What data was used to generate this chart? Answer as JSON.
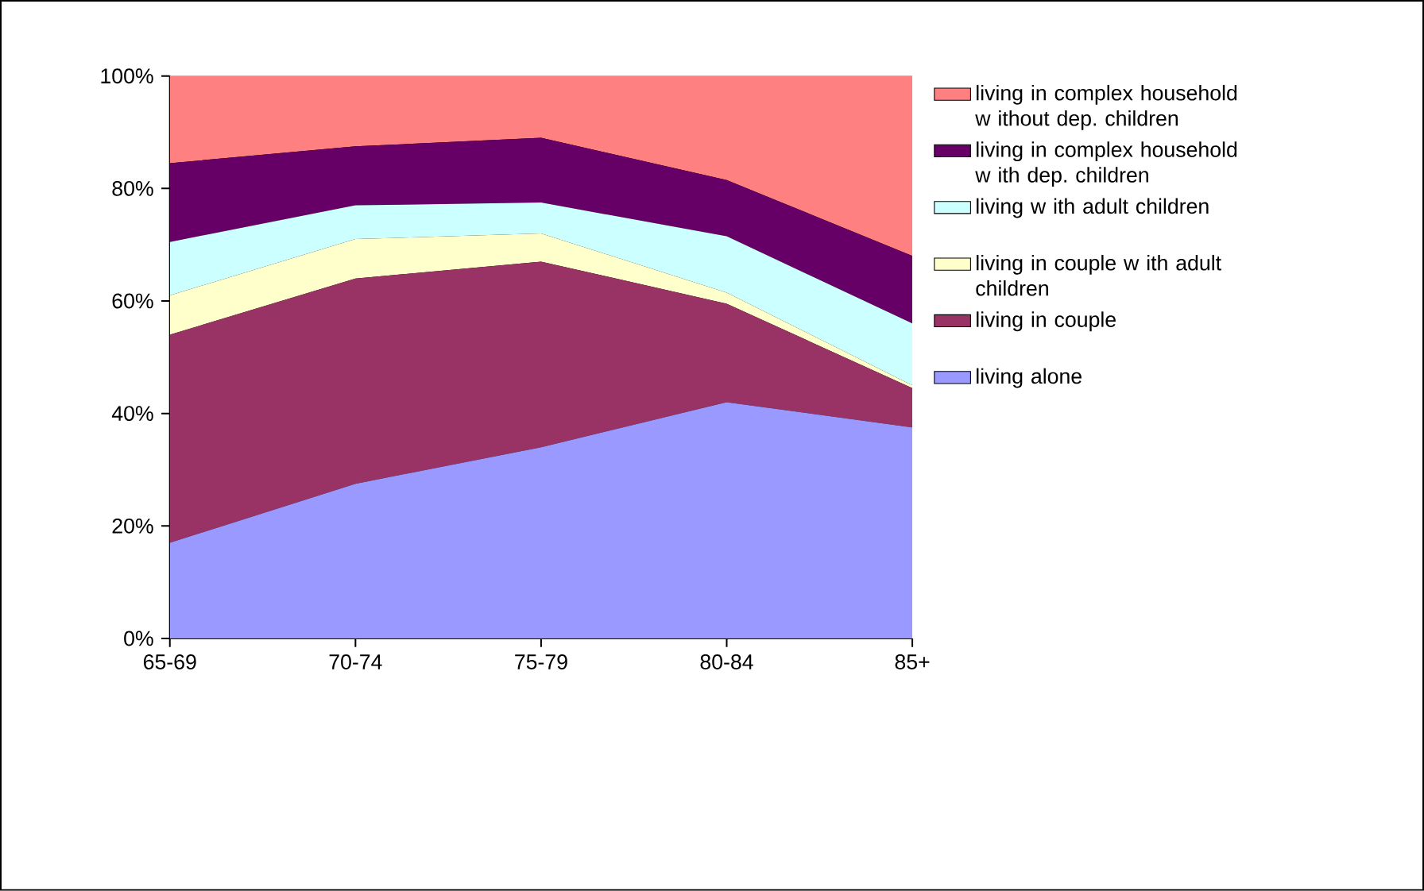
{
  "chart_data": {
    "type": "area",
    "stacked": true,
    "categories": [
      "65-69",
      "70-74",
      "75-79",
      "80-84",
      "85+"
    ],
    "ylim": [
      0,
      100
    ],
    "yticks": [
      {
        "value": 0,
        "label": "0%"
      },
      {
        "value": 20,
        "label": "20%"
      },
      {
        "value": 40,
        "label": "40%"
      },
      {
        "value": 60,
        "label": "60%"
      },
      {
        "value": 80,
        "label": "80%"
      },
      {
        "value": 100,
        "label": "100%"
      }
    ],
    "legend": "right",
    "grid": false,
    "series": [
      {
        "name": "living alone",
        "color": "#9999ff",
        "values": [
          17,
          27.5,
          34,
          42,
          37.5
        ]
      },
      {
        "name": "living in couple",
        "color": "#993366",
        "values": [
          37,
          36.5,
          33,
          17.5,
          7
        ]
      },
      {
        "name": "living in couple w ith adult children",
        "color": "#ffffcc",
        "values": [
          7,
          7,
          5,
          2,
          0.5
        ]
      },
      {
        "name": "living w ith adult children",
        "color": "#ccffff",
        "values": [
          9.5,
          6,
          5.5,
          10,
          11
        ]
      },
      {
        "name": "living in complex household w ith dep. children",
        "color": "#660066",
        "values": [
          14,
          10.5,
          11.5,
          10,
          12
        ]
      },
      {
        "name": "living in complex household w ithout dep. children",
        "color": "#ff8080",
        "values": [
          15.5,
          12.5,
          11,
          18.5,
          32
        ]
      }
    ]
  }
}
